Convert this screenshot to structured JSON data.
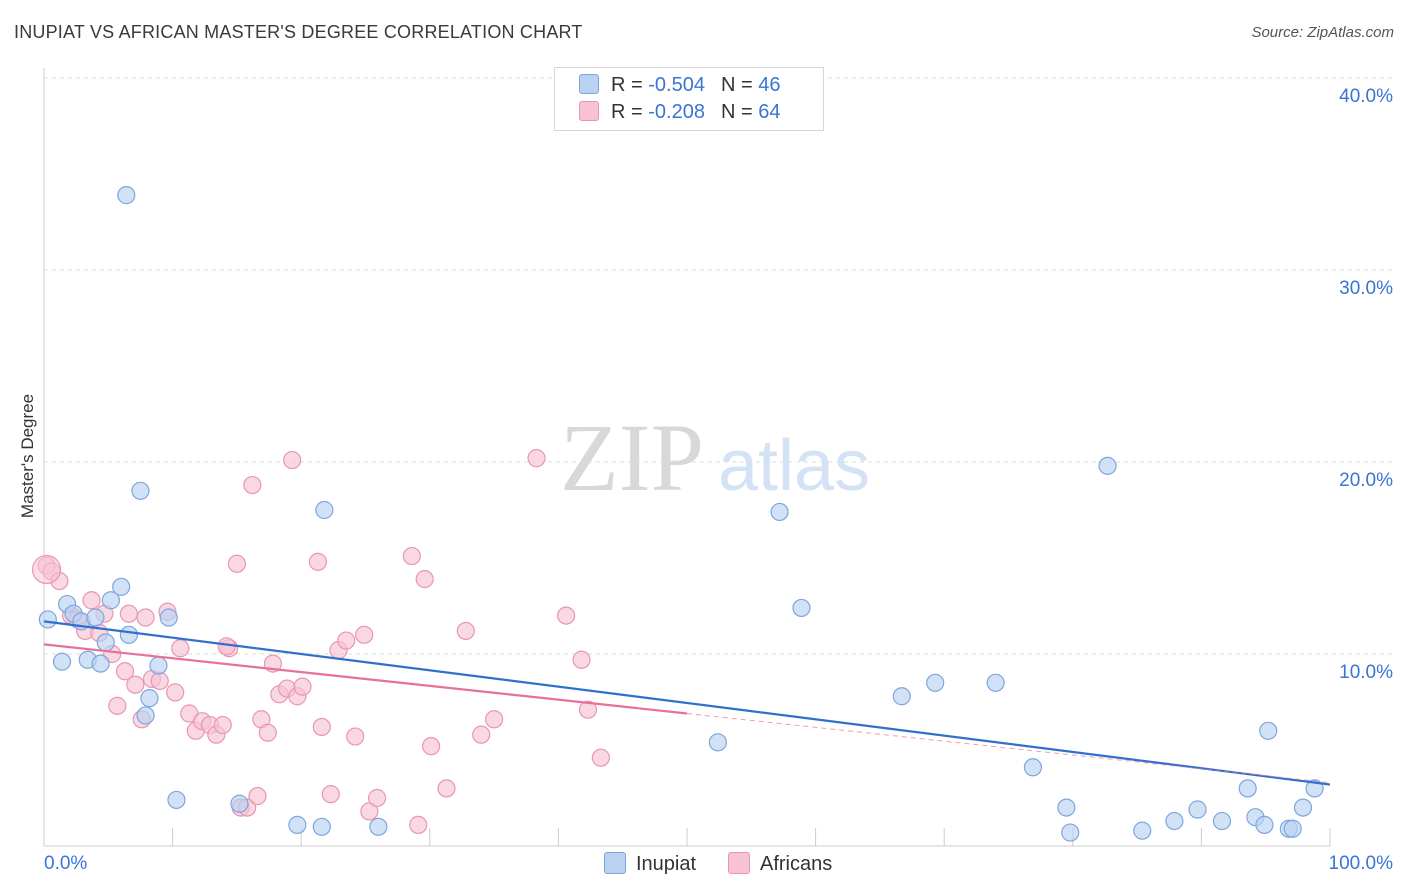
{
  "title": "INUPIAT VS AFRICAN MASTER'S DEGREE CORRELATION CHART",
  "source": "Source: ZipAtlas.com",
  "watermark": {
    "zip": "ZIP",
    "atlas": "atlas"
  },
  "legend": {
    "rows": [
      {
        "r_label": "R =",
        "r_value": "-0.504",
        "n_label": "N =",
        "n_value": "46"
      },
      {
        "r_label": "R =",
        "r_value": "-0.208",
        "n_label": "N =",
        "n_value": "64"
      }
    ]
  },
  "colors": {
    "inupiat_fill": "#b9d2f2",
    "inupiat_stroke": "#7ea6dc",
    "inupiat_line": "#2f6fd0",
    "africans_fill": "#f7c3d4",
    "africans_stroke": "#e995b3",
    "africans_line": "#e8709a",
    "axis_text": "#3a74d4",
    "grid": "#dddddd"
  },
  "chart_data": {
    "type": "scatter",
    "title": "INUPIAT VS AFRICAN MASTER'S DEGREE CORRELATION CHART",
    "xlabel": "",
    "ylabel": "Master's Degree",
    "xlim": [
      0,
      100
    ],
    "ylim": [
      0,
      40
    ],
    "x_tick_labels": [
      "0.0%",
      "100.0%"
    ],
    "y_ticks": [
      10,
      20,
      30,
      40
    ],
    "y_tick_labels": [
      "10.0%",
      "20.0%",
      "30.0%",
      "40.0%"
    ],
    "grid": true,
    "legend_position": "top-center",
    "series": [
      {
        "name": "Inupiat",
        "r": -0.504,
        "n": 46,
        "trend": {
          "x": [
            0,
            100
          ],
          "y": [
            11.7,
            3.2
          ],
          "x_solid_end": 100
        },
        "points": [
          [
            0.3,
            11.8
          ],
          [
            1.4,
            9.6
          ],
          [
            1.8,
            12.6
          ],
          [
            2.3,
            12.1
          ],
          [
            2.9,
            11.7
          ],
          [
            3.4,
            9.7
          ],
          [
            4.0,
            11.9
          ],
          [
            4.4,
            9.5
          ],
          [
            4.8,
            10.6
          ],
          [
            5.2,
            12.8
          ],
          [
            6.0,
            13.5
          ],
          [
            6.4,
            33.9
          ],
          [
            6.6,
            11.0
          ],
          [
            7.5,
            18.5
          ],
          [
            7.9,
            6.8
          ],
          [
            8.2,
            7.7
          ],
          [
            8.9,
            9.4
          ],
          [
            9.7,
            11.9
          ],
          [
            10.3,
            2.4
          ],
          [
            15.2,
            2.2
          ],
          [
            19.7,
            1.1
          ],
          [
            21.6,
            1.0
          ],
          [
            21.8,
            17.5
          ],
          [
            26.0,
            1.0
          ],
          [
            52.4,
            5.4
          ],
          [
            57.2,
            17.4
          ],
          [
            58.9,
            12.4
          ],
          [
            66.7,
            7.8
          ],
          [
            69.3,
            8.5
          ],
          [
            74.0,
            8.5
          ],
          [
            76.9,
            4.1
          ],
          [
            82.7,
            19.8
          ],
          [
            79.5,
            2.0
          ],
          [
            79.8,
            0.7
          ],
          [
            85.4,
            0.8
          ],
          [
            87.9,
            1.3
          ],
          [
            89.7,
            1.9
          ],
          [
            91.6,
            1.3
          ],
          [
            93.6,
            3.0
          ],
          [
            94.2,
            1.5
          ],
          [
            94.9,
            1.1
          ],
          [
            95.2,
            6.0
          ],
          [
            96.8,
            0.9
          ],
          [
            97.1,
            0.9
          ],
          [
            97.9,
            2.0
          ],
          [
            98.8,
            3.0
          ]
        ]
      },
      {
        "name": "Africans",
        "r": -0.208,
        "n": 64,
        "trend": {
          "x": [
            0,
            100
          ],
          "y": [
            10.5,
            3.3
          ],
          "x_solid_end": 50
        },
        "points": [
          [
            0.2,
            14.6
          ],
          [
            0.6,
            14.3
          ],
          [
            1.2,
            13.8
          ],
          [
            2.1,
            12.0
          ],
          [
            2.6,
            11.8
          ],
          [
            3.2,
            11.2
          ],
          [
            3.7,
            12.8
          ],
          [
            4.3,
            11.1
          ],
          [
            4.7,
            12.1
          ],
          [
            5.3,
            10.0
          ],
          [
            5.7,
            7.3
          ],
          [
            6.3,
            9.1
          ],
          [
            6.6,
            12.1
          ],
          [
            7.1,
            8.4
          ],
          [
            7.6,
            6.6
          ],
          [
            7.9,
            11.9
          ],
          [
            8.4,
            8.7
          ],
          [
            9.0,
            8.6
          ],
          [
            9.6,
            12.2
          ],
          [
            10.2,
            8.0
          ],
          [
            10.6,
            10.3
          ],
          [
            11.3,
            6.9
          ],
          [
            11.8,
            6.0
          ],
          [
            12.3,
            6.5
          ],
          [
            12.9,
            6.3
          ],
          [
            13.4,
            5.8
          ],
          [
            13.9,
            6.3
          ],
          [
            14.4,
            10.3
          ],
          [
            15.0,
            14.7
          ],
          [
            15.3,
            2.0
          ],
          [
            15.8,
            2.0
          ],
          [
            16.2,
            18.8
          ],
          [
            16.6,
            2.6
          ],
          [
            16.9,
            6.6
          ],
          [
            17.4,
            5.9
          ],
          [
            17.8,
            9.5
          ],
          [
            18.3,
            7.9
          ],
          [
            18.9,
            8.2
          ],
          [
            19.3,
            20.1
          ],
          [
            19.7,
            7.8
          ],
          [
            20.1,
            8.3
          ],
          [
            21.3,
            14.8
          ],
          [
            21.6,
            6.2
          ],
          [
            22.3,
            2.7
          ],
          [
            22.9,
            10.2
          ],
          [
            23.5,
            10.7
          ],
          [
            24.2,
            5.7
          ],
          [
            24.9,
            11.0
          ],
          [
            25.3,
            1.8
          ],
          [
            25.9,
            2.5
          ],
          [
            28.6,
            15.1
          ],
          [
            29.1,
            1.1
          ],
          [
            29.6,
            13.9
          ],
          [
            30.1,
            5.2
          ],
          [
            31.3,
            3.0
          ],
          [
            32.8,
            11.2
          ],
          [
            34.0,
            5.8
          ],
          [
            35.0,
            6.6
          ],
          [
            38.3,
            20.2
          ],
          [
            40.6,
            12.0
          ],
          [
            41.8,
            9.7
          ],
          [
            42.3,
            7.1
          ],
          [
            43.3,
            4.6
          ],
          [
            14.2,
            10.4
          ]
        ]
      }
    ]
  },
  "bottom_legend": [
    "Inupiat",
    "Africans"
  ]
}
